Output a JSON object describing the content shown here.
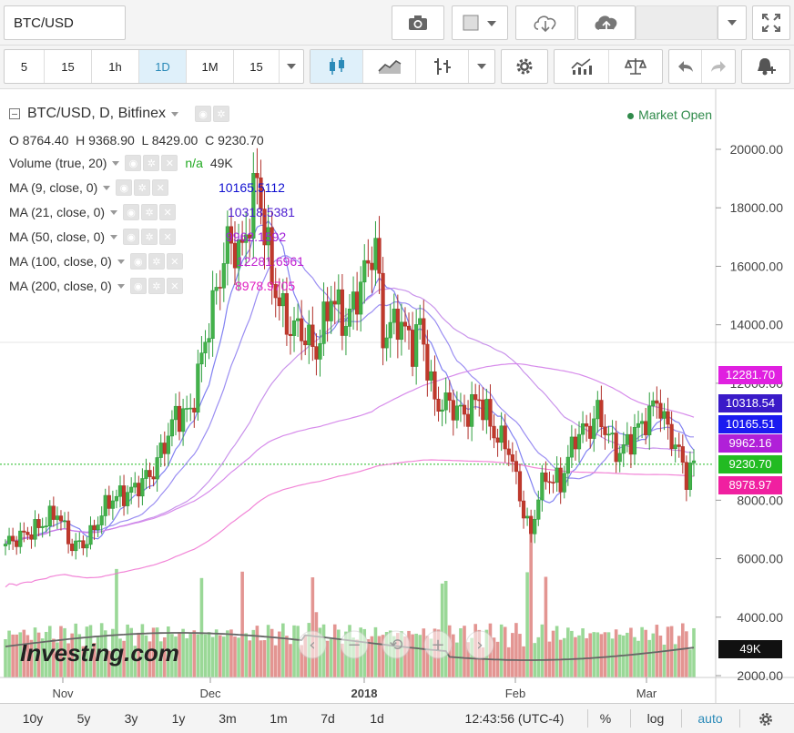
{
  "header": {
    "symbol": "BTC/USD"
  },
  "intervals": [
    "5",
    "15",
    "1h",
    "1D",
    "1M",
    "15"
  ],
  "active_interval": "1D",
  "legend": {
    "title": "BTC/USD, D, Bitfinex",
    "ohlc": "O 8764.40  H 9368.90  L 8429.00  C 9230.70",
    "market_status": "Market Open",
    "volume": {
      "label": "Volume (true, 20)",
      "status": "n/a",
      "value": "49K"
    },
    "ma": [
      {
        "label": "MA (9, close, 0)",
        "value": "10165.5112",
        "color": "#1010d0"
      },
      {
        "label": "MA (21, close, 0)",
        "value": "10318.5381",
        "color": "#4a1ad0"
      },
      {
        "label": "MA (50, close, 0)",
        "value": "9962.1592",
        "color": "#a020d8"
      },
      {
        "label": "MA (100, close, 0)",
        "value": "12281.6961",
        "color": "#c020d0"
      },
      {
        "label": "MA (200, close, 0)",
        "value": "8978.9705",
        "color": "#e020c0"
      }
    ]
  },
  "price_axis": [
    "20000.00",
    "18000.00",
    "16000.00",
    "14000.00",
    "12000.00",
    "8000.00",
    "6000.00",
    "4000.00",
    "2000.00"
  ],
  "price_labels": [
    {
      "text": "12281.70",
      "color": "#e020e0"
    },
    {
      "text": "10318.54",
      "color": "#3a1ac8"
    },
    {
      "text": "10165.51",
      "color": "#1a1af0"
    },
    {
      "text": "9962.16",
      "color": "#b020d8"
    },
    {
      "text": "9230.70",
      "color": "#22bb22"
    },
    {
      "text": "8978.97",
      "color": "#f020a0"
    },
    {
      "text": "49K",
      "color": "#111111"
    }
  ],
  "time_axis": [
    "Nov",
    "Dec",
    "2018",
    "Feb",
    "Mar"
  ],
  "watermark": "Investing.com",
  "bottom_bar": {
    "ranges": [
      "10y",
      "5y",
      "3y",
      "1y",
      "3m",
      "1m",
      "7d",
      "1d"
    ],
    "time": "12:43:56 (UTC-4)",
    "percent": "%",
    "log": "log",
    "auto": "auto"
  }
}
